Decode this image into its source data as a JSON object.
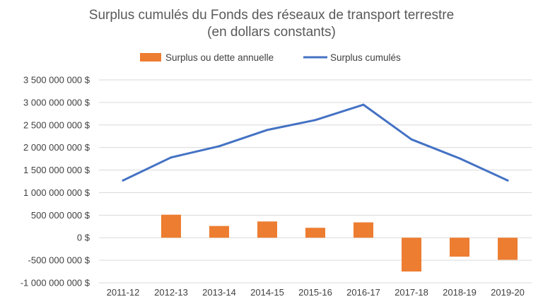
{
  "chart_data": {
    "type": "bar+line",
    "title": "Surplus cumulés du Fonds des réseaux de transport terrestre",
    "subtitle": "(en dollars constants)",
    "categories": [
      "2011-12",
      "2012-13",
      "2013-14",
      "2014-15",
      "2015-16",
      "2016-17",
      "2017-18",
      "2018-19",
      "2019-20"
    ],
    "series": [
      {
        "name": "Surplus ou dette annuelle",
        "type": "bar",
        "color": "#ED7D31",
        "values": [
          0,
          510000000,
          260000000,
          360000000,
          220000000,
          340000000,
          -750000000,
          -420000000,
          -490000000
        ]
      },
      {
        "name": "Surplus cumulés",
        "type": "line",
        "color": "#4472C4",
        "values": [
          1270000000,
          1780000000,
          2030000000,
          2390000000,
          2610000000,
          2950000000,
          2180000000,
          1760000000,
          1270000000
        ]
      }
    ],
    "yticks": [
      "3 500 000 000 $",
      "3 000 000 000 $",
      "2 500 000 000 $",
      "2 000 000 000 $",
      "1 500 000 000 $",
      "1 000 000 000 $",
      "500 000 000 $",
      "0 $",
      "-500 000 000 $",
      "-1 000 000 000 $"
    ],
    "ylim": [
      -1000000000,
      3500000000
    ],
    "ystep": 500000000,
    "grid": true,
    "legend_position": "top"
  }
}
